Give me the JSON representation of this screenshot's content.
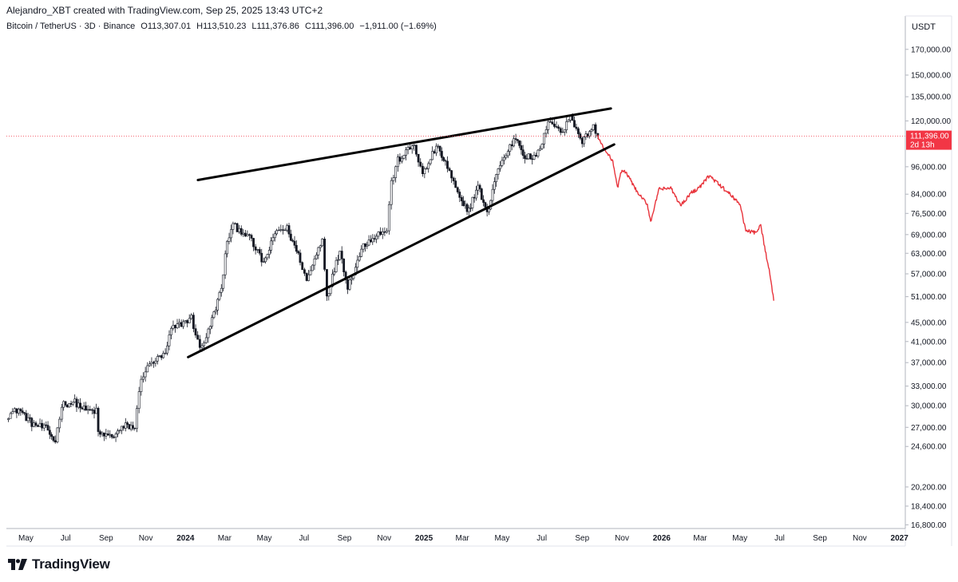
{
  "header": {
    "creator_line": "Alejandro_XBT created with TradingView.com, Sep 25, 2025 13:43 UTC+2"
  },
  "symbol_bar": {
    "symbol": "Bitcoin / TetherUS · 3D · Binance",
    "open": "O113,307.01",
    "high": "H113,510.23",
    "low": "L111,376.86",
    "close": "C111,396.00",
    "change": "−1,911.00 (−1.69%)"
  },
  "colors": {
    "candles": "#131722",
    "projection": "#e8333b",
    "price_tag": "#f23645",
    "trendline": "#000000",
    "price_line": "#f23645"
  },
  "icons": {
    "logo": "tradingview-logo-icon"
  },
  "logo_text": "TradingView",
  "chart_data": {
    "type": "line",
    "chart_style": "candlestick",
    "scale": "log",
    "x_tick_labels": [
      "May",
      "Jul",
      "Sep",
      "Nov",
      "2024",
      "Mar",
      "May",
      "Jul",
      "Sep",
      "Nov",
      "2025",
      "Mar",
      "May",
      "Jul",
      "Sep",
      "Nov",
      "2026",
      "Mar",
      "May",
      "Jul",
      "Sep",
      "Nov",
      "2027"
    ],
    "y_tick_labels": [
      "170,000.00",
      "150,000.00",
      "135,000.00",
      "120,000.00",
      "96,000.00",
      "84,000.00",
      "76,500.00",
      "69,000.00",
      "63,000.00",
      "57,000.00",
      "51,000.00",
      "45,000.00",
      "41,000.00",
      "37,000.00",
      "33,000.00",
      "30,000.00",
      "27,000.00",
      "24,600.00",
      "20,200.00",
      "18,400.00",
      "16,800.00"
    ],
    "y_ticks": [
      170000,
      150000,
      135000,
      120000,
      96000,
      84000,
      76500,
      69000,
      63000,
      57000,
      51000,
      45000,
      41000,
      37000,
      33000,
      30000,
      27000,
      24600,
      20200,
      18400,
      16800
    ],
    "currency": "USDT",
    "last_price_label": "111,396.00",
    "countdown_label": "2d 13h",
    "last_price": 111396,
    "x_range": [
      "2023-04-01",
      "2027-01-10"
    ],
    "y_range": [
      16500,
      200000
    ],
    "series": [
      {
        "kind": "candles",
        "points": [
          [
            "2023-04-01",
            28500
          ],
          [
            "2023-04-20",
            29500
          ],
          [
            "2023-05-10",
            27500
          ],
          [
            "2023-06-01",
            26800
          ],
          [
            "2023-06-15",
            25200
          ],
          [
            "2023-06-25",
            30200
          ],
          [
            "2023-07-15",
            30500
          ],
          [
            "2023-08-01",
            29300
          ],
          [
            "2023-08-17",
            29200
          ],
          [
            "2023-08-20",
            26200
          ],
          [
            "2023-09-10",
            25800
          ],
          [
            "2023-10-01",
            27200
          ],
          [
            "2023-10-15",
            27000
          ],
          [
            "2023-10-25",
            34500
          ],
          [
            "2023-11-10",
            37000
          ],
          [
            "2023-12-01",
            38500
          ],
          [
            "2023-12-10",
            43500
          ],
          [
            "2024-01-10",
            46000
          ],
          [
            "2024-01-23",
            39500
          ],
          [
            "2024-02-05",
            43000
          ],
          [
            "2024-02-25",
            53000
          ],
          [
            "2024-03-05",
            67000
          ],
          [
            "2024-03-14",
            72000
          ],
          [
            "2024-04-05",
            69000
          ],
          [
            "2024-04-30",
            60000
          ],
          [
            "2024-05-20",
            70500
          ],
          [
            "2024-06-05",
            71000
          ],
          [
            "2024-06-25",
            61000
          ],
          [
            "2024-07-05",
            55000
          ],
          [
            "2024-07-29",
            68000
          ],
          [
            "2024-08-05",
            51000
          ],
          [
            "2024-08-25",
            64000
          ],
          [
            "2024-09-06",
            53500
          ],
          [
            "2024-09-30",
            65500
          ],
          [
            "2024-10-20",
            69000
          ],
          [
            "2024-11-05",
            70500
          ],
          [
            "2024-11-12",
            89000
          ],
          [
            "2024-11-22",
            99000
          ],
          [
            "2024-12-17",
            107000
          ],
          [
            "2024-12-30",
            92000
          ],
          [
            "2025-01-20",
            106000
          ],
          [
            "2025-02-03",
            98000
          ],
          [
            "2025-02-28",
            80000
          ],
          [
            "2025-03-11",
            78000
          ],
          [
            "2025-03-25",
            87500
          ],
          [
            "2025-04-08",
            76000
          ],
          [
            "2025-04-22",
            93000
          ],
          [
            "2025-05-10",
            104000
          ],
          [
            "2025-05-22",
            111000
          ],
          [
            "2025-06-05",
            101000
          ],
          [
            "2025-06-22",
            100000
          ],
          [
            "2025-07-14",
            121000
          ],
          [
            "2025-08-02",
            113000
          ],
          [
            "2025-08-14",
            123500
          ],
          [
            "2025-09-01",
            108500
          ],
          [
            "2025-09-18",
            117000
          ],
          [
            "2025-09-25",
            111396
          ]
        ]
      },
      {
        "kind": "projection",
        "points": [
          [
            "2025-09-25",
            111396
          ],
          [
            "2025-10-02",
            106000
          ],
          [
            "2025-10-10",
            102000
          ],
          [
            "2025-10-18",
            99000
          ],
          [
            "2025-10-25",
            86500
          ],
          [
            "2025-11-01",
            95000
          ],
          [
            "2025-11-10",
            92000
          ],
          [
            "2025-11-25",
            84500
          ],
          [
            "2025-12-10",
            80000
          ],
          [
            "2025-12-15",
            73500
          ],
          [
            "2025-12-28",
            86000
          ],
          [
            "2026-01-15",
            86500
          ],
          [
            "2026-01-30",
            79500
          ],
          [
            "2026-02-15",
            84500
          ],
          [
            "2026-03-01",
            87000
          ],
          [
            "2026-03-15",
            92000
          ],
          [
            "2026-04-01",
            87500
          ],
          [
            "2026-04-20",
            83000
          ],
          [
            "2026-05-01",
            80000
          ],
          [
            "2026-05-10",
            70500
          ],
          [
            "2026-05-25",
            69500
          ],
          [
            "2026-06-02",
            72000
          ],
          [
            "2026-06-10",
            63000
          ],
          [
            "2026-06-18",
            55000
          ],
          [
            "2026-06-22",
            50000
          ]
        ]
      },
      {
        "kind": "trendline",
        "points": [
          [
            "2024-01-20",
            90000
          ],
          [
            "2025-10-15",
            127500
          ]
        ]
      },
      {
        "kind": "trendline",
        "points": [
          [
            "2024-01-05",
            38000
          ],
          [
            "2025-10-20",
            107000
          ]
        ]
      }
    ]
  }
}
